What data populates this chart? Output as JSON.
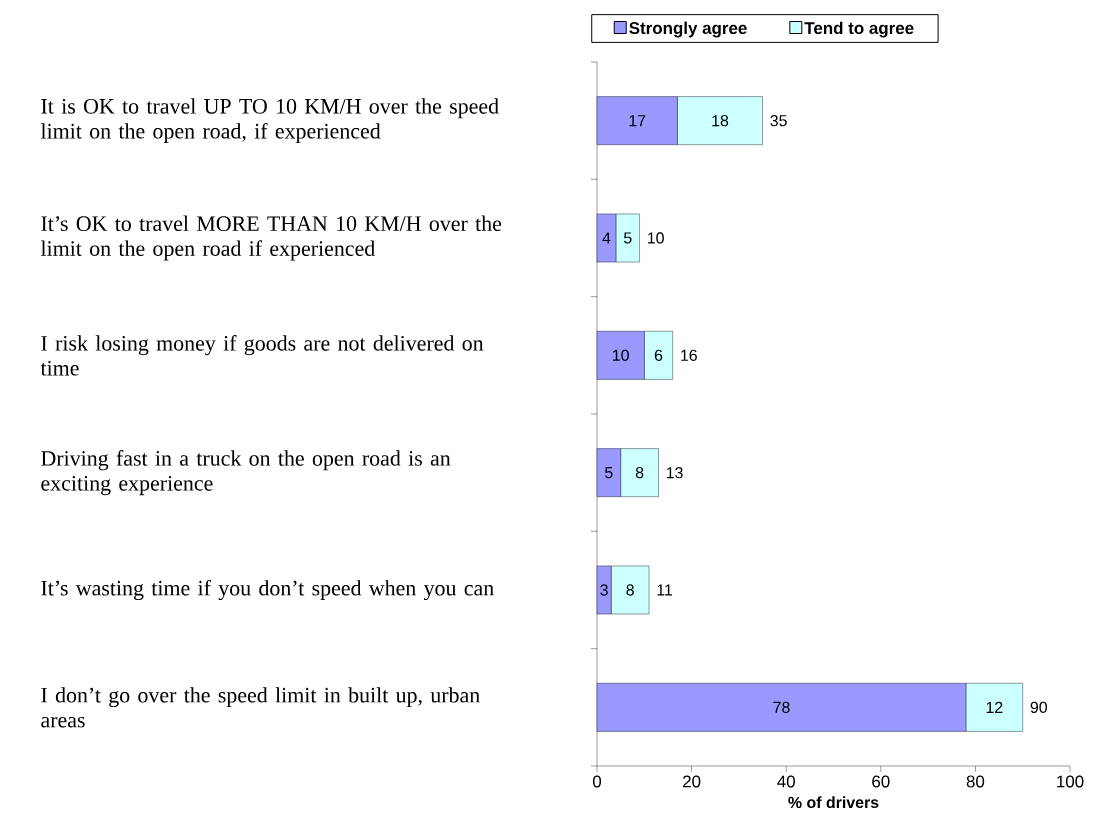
{
  "chart_data": {
    "type": "bar",
    "orientation": "horizontal",
    "stacked": true,
    "categories": [
      "It is OK to travel UP TO 10 KM/H over the speed limit on the open road, if experienced",
      "It’s OK to travel MORE THAN 10 KM/H over the limit on the open road if experienced",
      "I risk losing money if goods are not delivered on time",
      "Driving fast in a truck on the open road is an exciting experience",
      "It’s wasting time if you don’t speed when you can",
      "I don’t go over the speed limit in built up, urban areas"
    ],
    "series": [
      {
        "name": "Strongly agree",
        "color": "#9999ff",
        "values": [
          17,
          4,
          10,
          5,
          3,
          78
        ]
      },
      {
        "name": "Tend to agree",
        "color": "#ccffff",
        "values": [
          18,
          5,
          6,
          8,
          8,
          12
        ]
      }
    ],
    "totals": [
      "35",
      "10",
      "16",
      "13",
      "11",
      "90"
    ],
    "data_labels": true,
    "xlabel": "% of drivers",
    "xlim": [
      0,
      100
    ],
    "xticks": [
      0,
      20,
      40,
      60,
      80,
      100
    ],
    "legend": "top"
  }
}
